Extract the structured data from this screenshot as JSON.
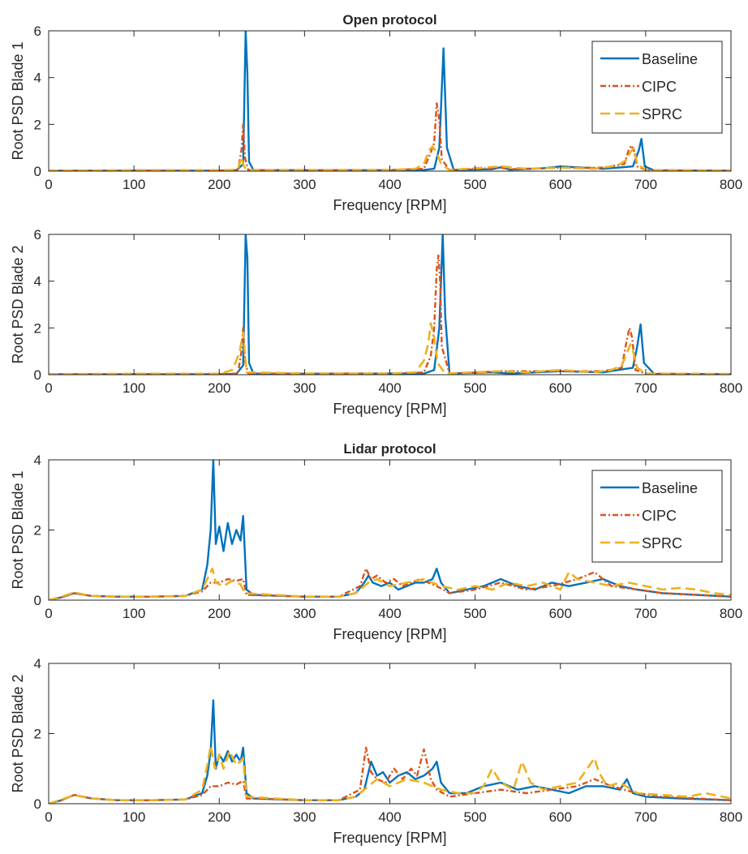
{
  "colors": {
    "Baseline": "#0072BD",
    "CIPC": "#D95319",
    "SPRC": "#EDB120",
    "axis": "#262626",
    "background": "#ffffff"
  },
  "chart_data": [
    {
      "type": "line",
      "title": "Open protocol",
      "xlabel": "Frequency [RPM]",
      "ylabel": "Root PSD Blade 1",
      "xlim": [
        0,
        800
      ],
      "ylim": [
        0,
        6
      ],
      "xticks": [
        0,
        100,
        200,
        300,
        400,
        500,
        600,
        700,
        800
      ],
      "yticks": [
        0,
        2,
        4,
        6
      ],
      "grid": false,
      "legend": "top-right",
      "series": [
        {
          "name": "Baseline",
          "style": "solid",
          "x": [
            0,
            100,
            200,
            220,
            228,
            231,
            233,
            235,
            240,
            300,
            400,
            440,
            452,
            458,
            463,
            467,
            475,
            520,
            532,
            540,
            580,
            600,
            650,
            685,
            692,
            695,
            699,
            710,
            800
          ],
          "y": [
            0.02,
            0.02,
            0.02,
            0.03,
            0.3,
            6.0,
            4.2,
            0.4,
            0.05,
            0.04,
            0.04,
            0.05,
            0.1,
            1.0,
            5.25,
            1.0,
            0.05,
            0.08,
            0.18,
            0.06,
            0.12,
            0.2,
            0.1,
            0.2,
            0.9,
            1.38,
            0.2,
            0.03,
            0.02
          ]
        },
        {
          "name": "CIPC",
          "style": "dashdot",
          "x": [
            0,
            100,
            200,
            222,
            226,
            228,
            230,
            234,
            300,
            400,
            440,
            448,
            452,
            455,
            458,
            461,
            470,
            530,
            540,
            600,
            650,
            675,
            680,
            683,
            686,
            690,
            700,
            800
          ],
          "y": [
            0.02,
            0.02,
            0.03,
            0.05,
            0.9,
            2.0,
            0.6,
            0.05,
            0.04,
            0.05,
            0.1,
            0.8,
            1.2,
            2.9,
            2.2,
            0.5,
            0.05,
            0.15,
            0.08,
            0.15,
            0.15,
            0.3,
            0.9,
            1.1,
            0.9,
            0.2,
            0.05,
            0.02
          ]
        },
        {
          "name": "SPRC",
          "style": "dashed",
          "x": [
            0,
            100,
            200,
            215,
            222,
            226,
            229,
            233,
            300,
            400,
            430,
            440,
            446,
            450,
            455,
            460,
            470,
            530,
            560,
            600,
            640,
            660,
            670,
            678,
            682,
            686,
            690,
            700,
            800
          ],
          "y": [
            0.02,
            0.04,
            0.04,
            0.05,
            0.1,
            0.6,
            0.2,
            0.05,
            0.05,
            0.05,
            0.1,
            0.3,
            0.9,
            1.05,
            0.8,
            0.3,
            0.05,
            0.2,
            0.1,
            0.15,
            0.1,
            0.2,
            0.3,
            0.5,
            0.8,
            1.0,
            0.3,
            0.05,
            0.03
          ]
        }
      ]
    },
    {
      "type": "line",
      "title": "",
      "xlabel": "Frequency [RPM]",
      "ylabel": "Root PSD Blade 2",
      "xlim": [
        0,
        800
      ],
      "ylim": [
        0,
        6
      ],
      "xticks": [
        0,
        100,
        200,
        300,
        400,
        500,
        600,
        700,
        800
      ],
      "yticks": [
        0,
        2,
        4,
        6
      ],
      "grid": false,
      "series": [
        {
          "name": "Baseline",
          "style": "solid",
          "x": [
            0,
            100,
            200,
            220,
            228,
            231,
            233,
            235,
            240,
            300,
            400,
            440,
            452,
            458,
            462,
            465,
            470,
            520,
            540,
            600,
            650,
            685,
            690,
            694,
            698,
            710,
            800
          ],
          "y": [
            0.02,
            0.02,
            0.02,
            0.03,
            0.4,
            6.0,
            5.0,
            0.5,
            0.05,
            0.04,
            0.05,
            0.05,
            0.2,
            2.0,
            6.0,
            2.5,
            0.05,
            0.1,
            0.05,
            0.15,
            0.1,
            0.3,
            1.2,
            2.15,
            0.5,
            0.03,
            0.02
          ]
        },
        {
          "name": "CIPC",
          "style": "dashdot",
          "x": [
            0,
            100,
            200,
            222,
            226,
            228,
            230,
            234,
            300,
            400,
            440,
            448,
            452,
            455,
            457,
            459,
            461,
            470,
            530,
            600,
            650,
            672,
            678,
            681,
            684,
            688,
            700,
            800
          ],
          "y": [
            0.02,
            0.02,
            0.03,
            0.05,
            1.0,
            2.0,
            0.6,
            0.05,
            0.05,
            0.05,
            0.1,
            0.8,
            2.0,
            4.5,
            5.1,
            4.0,
            1.2,
            0.05,
            0.15,
            0.15,
            0.15,
            0.3,
            1.5,
            2.0,
            1.6,
            0.2,
            0.05,
            0.02
          ]
        },
        {
          "name": "SPRC",
          "style": "dashed",
          "x": [
            0,
            100,
            200,
            215,
            220,
            224,
            228,
            232,
            300,
            400,
            430,
            440,
            445,
            448,
            452,
            456,
            465,
            530,
            560,
            600,
            640,
            660,
            672,
            678,
            682,
            686,
            690,
            700,
            800
          ],
          "y": [
            0.02,
            0.04,
            0.04,
            0.2,
            0.6,
            1.0,
            1.8,
            0.1,
            0.05,
            0.05,
            0.1,
            0.6,
            1.3,
            2.2,
            1.6,
            0.5,
            0.05,
            0.15,
            0.1,
            0.2,
            0.1,
            0.2,
            0.4,
            0.9,
            1.3,
            0.9,
            0.3,
            0.05,
            0.03
          ]
        }
      ]
    },
    {
      "type": "line",
      "title": "Lidar protocol",
      "xlabel": "Frequency [RPM]",
      "ylabel": "Root PSD Blade 1",
      "xlim": [
        0,
        800
      ],
      "ylim": [
        0,
        4
      ],
      "xticks": [
        0,
        100,
        200,
        300,
        400,
        500,
        600,
        700,
        800
      ],
      "yticks": [
        0,
        2,
        4
      ],
      "grid": false,
      "legend": "top-right",
      "series": [
        {
          "name": "Baseline",
          "style": "solid",
          "x": [
            0,
            15,
            30,
            50,
            80,
            120,
            160,
            180,
            186,
            190,
            193,
            196,
            200,
            205,
            210,
            215,
            220,
            225,
            228,
            232,
            240,
            300,
            340,
            360,
            370,
            375,
            380,
            390,
            400,
            410,
            420,
            430,
            440,
            450,
            455,
            460,
            470,
            490,
            510,
            530,
            550,
            570,
            590,
            610,
            630,
            650,
            670,
            690,
            720,
            760,
            800
          ],
          "y": [
            0.0,
            0.08,
            0.2,
            0.12,
            0.1,
            0.1,
            0.12,
            0.3,
            1.0,
            2.0,
            4.0,
            1.6,
            2.1,
            1.4,
            2.2,
            1.6,
            2.0,
            1.7,
            2.4,
            0.3,
            0.15,
            0.1,
            0.1,
            0.2,
            0.5,
            0.7,
            0.5,
            0.4,
            0.5,
            0.3,
            0.4,
            0.5,
            0.5,
            0.6,
            0.9,
            0.5,
            0.2,
            0.3,
            0.4,
            0.6,
            0.4,
            0.3,
            0.5,
            0.4,
            0.5,
            0.6,
            0.4,
            0.3,
            0.2,
            0.15,
            0.1
          ]
        },
        {
          "name": "CIPC",
          "style": "dashdot",
          "x": [
            0,
            15,
            30,
            50,
            80,
            120,
            160,
            180,
            190,
            200,
            210,
            220,
            228,
            232,
            300,
            340,
            365,
            372,
            378,
            385,
            395,
            405,
            415,
            425,
            435,
            445,
            455,
            470,
            500,
            530,
            560,
            590,
            620,
            640,
            660,
            690,
            720,
            760,
            800
          ],
          "y": [
            0.0,
            0.08,
            0.2,
            0.12,
            0.1,
            0.1,
            0.12,
            0.25,
            0.5,
            0.5,
            0.6,
            0.55,
            0.6,
            0.15,
            0.1,
            0.1,
            0.4,
            0.9,
            0.6,
            0.7,
            0.5,
            0.6,
            0.4,
            0.5,
            0.6,
            0.5,
            0.4,
            0.2,
            0.3,
            0.5,
            0.3,
            0.4,
            0.6,
            0.8,
            0.4,
            0.3,
            0.2,
            0.15,
            0.1
          ]
        },
        {
          "name": "SPRC",
          "style": "dashed",
          "x": [
            0,
            15,
            30,
            50,
            80,
            120,
            160,
            180,
            188,
            192,
            196,
            205,
            215,
            225,
            230,
            300,
            340,
            360,
            375,
            385,
            400,
            420,
            440,
            460,
            480,
            500,
            520,
            540,
            560,
            580,
            600,
            610,
            620,
            640,
            660,
            680,
            700,
            720,
            740,
            760,
            780,
            800
          ],
          "y": [
            0.0,
            0.1,
            0.22,
            0.12,
            0.1,
            0.1,
            0.12,
            0.3,
            0.7,
            0.9,
            0.5,
            0.4,
            0.55,
            0.45,
            0.2,
            0.1,
            0.1,
            0.2,
            0.5,
            0.6,
            0.4,
            0.5,
            0.6,
            0.4,
            0.3,
            0.4,
            0.3,
            0.5,
            0.4,
            0.5,
            0.3,
            0.8,
            0.6,
            0.5,
            0.4,
            0.5,
            0.4,
            0.3,
            0.35,
            0.3,
            0.2,
            0.15
          ]
        }
      ]
    },
    {
      "type": "line",
      "title": "",
      "xlabel": "Frequency [RPM]",
      "ylabel": "Root PSD Blade 2",
      "xlim": [
        0,
        800
      ],
      "ylim": [
        0,
        4
      ],
      "xticks": [
        0,
        100,
        200,
        300,
        400,
        500,
        600,
        700,
        800
      ],
      "yticks": [
        0,
        2,
        4
      ],
      "grid": false,
      "series": [
        {
          "name": "Baseline",
          "style": "solid",
          "x": [
            0,
            15,
            30,
            50,
            80,
            120,
            160,
            180,
            186,
            190,
            193,
            196,
            200,
            205,
            210,
            215,
            220,
            225,
            228,
            232,
            240,
            300,
            340,
            360,
            370,
            378,
            385,
            392,
            400,
            410,
            420,
            430,
            440,
            450,
            455,
            460,
            470,
            490,
            510,
            530,
            550,
            570,
            590,
            610,
            630,
            650,
            670,
            678,
            685,
            700,
            740,
            800
          ],
          "y": [
            0.0,
            0.1,
            0.25,
            0.15,
            0.1,
            0.1,
            0.12,
            0.3,
            0.8,
            1.5,
            2.95,
            1.0,
            1.4,
            1.2,
            1.5,
            1.2,
            1.4,
            1.2,
            1.6,
            0.3,
            0.15,
            0.1,
            0.1,
            0.2,
            0.4,
            1.2,
            0.8,
            0.9,
            0.6,
            0.8,
            0.9,
            0.7,
            0.8,
            1.0,
            1.2,
            0.6,
            0.3,
            0.3,
            0.5,
            0.6,
            0.4,
            0.5,
            0.4,
            0.3,
            0.5,
            0.5,
            0.4,
            0.7,
            0.3,
            0.2,
            0.15,
            0.1
          ]
        },
        {
          "name": "CIPC",
          "style": "dashdot",
          "x": [
            0,
            15,
            30,
            50,
            80,
            120,
            160,
            180,
            190,
            200,
            210,
            220,
            228,
            232,
            300,
            340,
            365,
            372,
            378,
            385,
            395,
            405,
            415,
            425,
            432,
            440,
            448,
            455,
            470,
            500,
            530,
            560,
            590,
            620,
            640,
            660,
            690,
            720,
            760,
            800
          ],
          "y": [
            0.0,
            0.1,
            0.25,
            0.15,
            0.1,
            0.1,
            0.12,
            0.25,
            0.5,
            0.5,
            0.6,
            0.55,
            0.65,
            0.15,
            0.1,
            0.1,
            0.4,
            1.6,
            0.9,
            0.7,
            0.6,
            1.0,
            0.7,
            1.0,
            0.8,
            1.55,
            0.7,
            0.4,
            0.2,
            0.3,
            0.4,
            0.3,
            0.4,
            0.5,
            0.7,
            0.5,
            0.3,
            0.2,
            0.15,
            0.1
          ]
        },
        {
          "name": "SPRC",
          "style": "dashed",
          "x": [
            0,
            15,
            30,
            50,
            80,
            120,
            160,
            180,
            186,
            190,
            195,
            200,
            205,
            212,
            220,
            228,
            232,
            300,
            340,
            360,
            375,
            385,
            400,
            420,
            440,
            460,
            480,
            500,
            510,
            520,
            530,
            545,
            555,
            565,
            580,
            600,
            620,
            640,
            645,
            655,
            670,
            690,
            720,
            750,
            770,
            800
          ],
          "y": [
            0.0,
            0.12,
            0.25,
            0.15,
            0.1,
            0.1,
            0.12,
            0.4,
            1.1,
            1.65,
            1.0,
            1.4,
            1.0,
            1.5,
            1.1,
            1.3,
            0.2,
            0.1,
            0.1,
            0.2,
            0.5,
            0.7,
            0.5,
            0.7,
            0.6,
            0.4,
            0.3,
            0.3,
            0.5,
            1.0,
            0.6,
            0.4,
            1.2,
            0.6,
            0.4,
            0.5,
            0.6,
            1.3,
            0.9,
            0.5,
            0.6,
            0.3,
            0.25,
            0.2,
            0.3,
            0.15
          ]
        }
      ]
    }
  ]
}
